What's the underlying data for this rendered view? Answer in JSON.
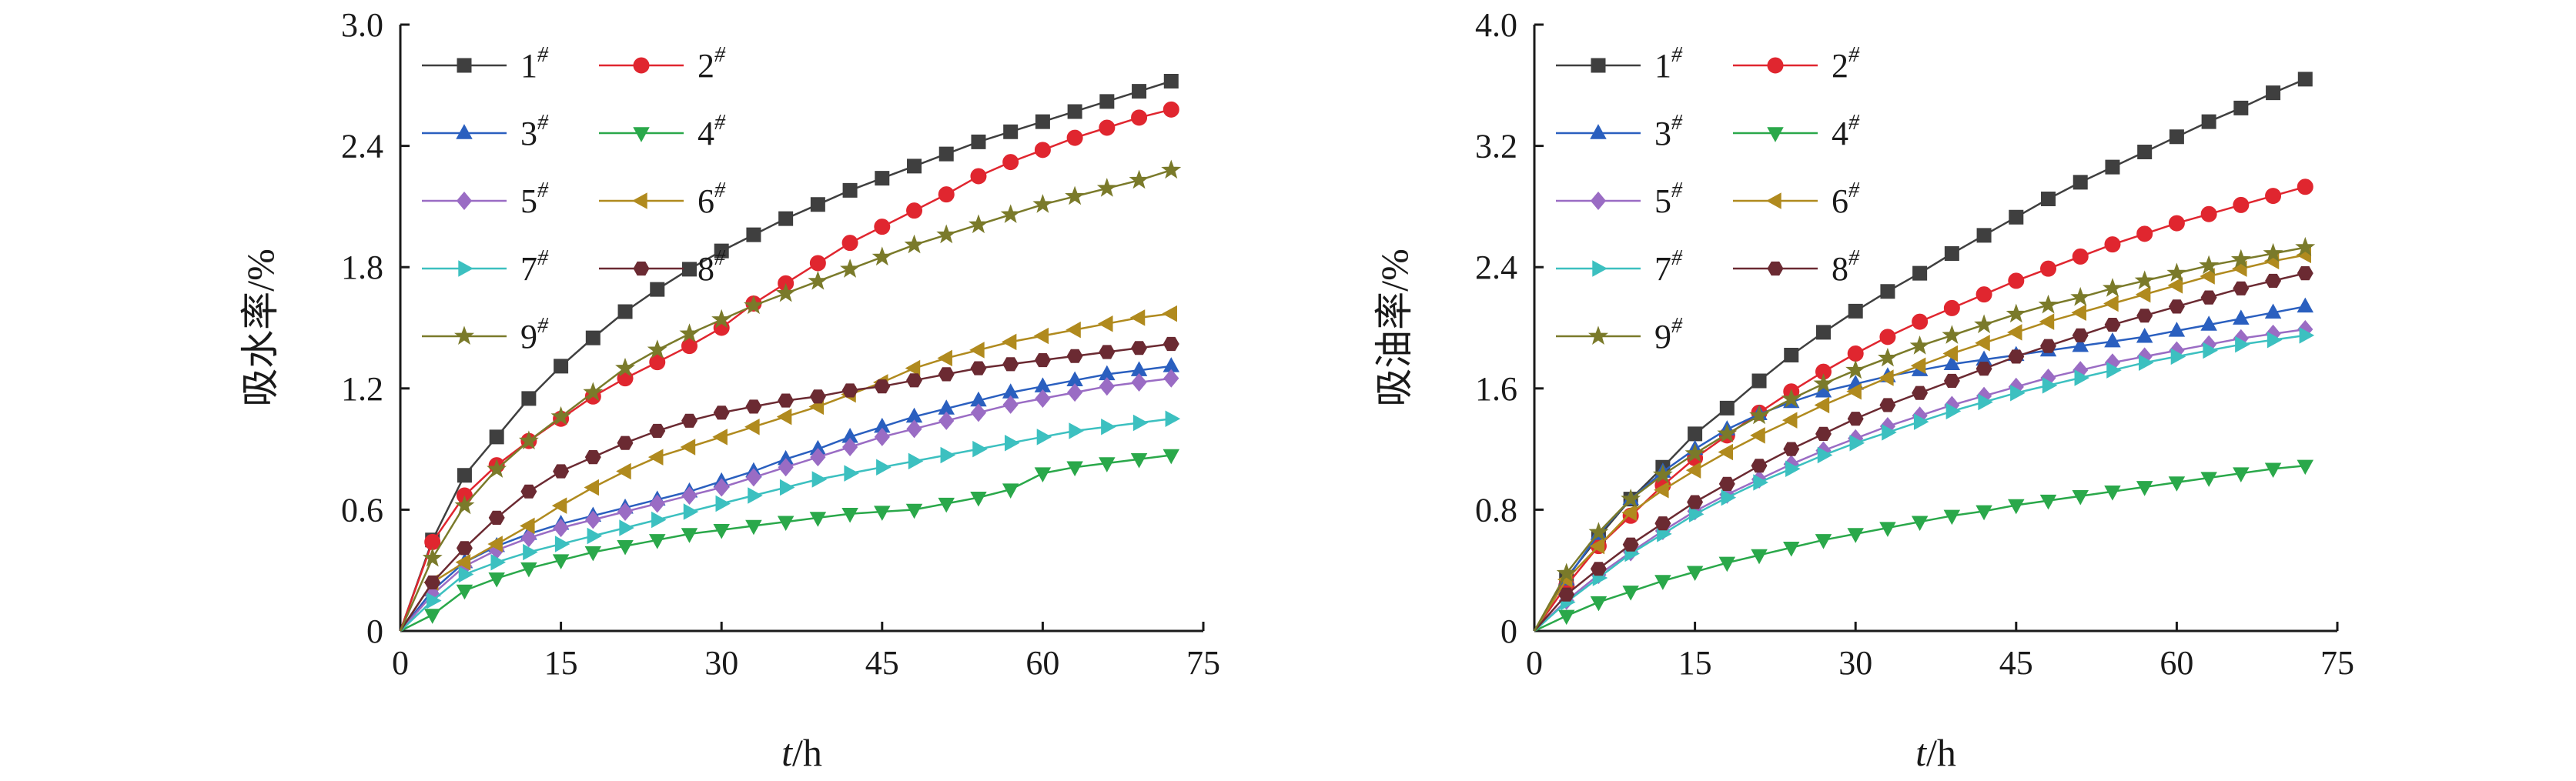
{
  "chart_data": [
    {
      "type": "line",
      "ylabel": "吸水率/%",
      "xlabel_italic": "t",
      "xlabel_rest": "/h",
      "xlim": [
        0,
        75
      ],
      "ylim": [
        0,
        3.0
      ],
      "xticks": [
        "0",
        "15",
        "30",
        "45",
        "60",
        "75"
      ],
      "yticks": [
        "0",
        "0.6",
        "1.2",
        "1.8",
        "2.4",
        "3.0"
      ],
      "grid": false,
      "legend": "top-left, two columns",
      "x": [
        0,
        3,
        6,
        9,
        12,
        15,
        18,
        21,
        24,
        27,
        30,
        33,
        36,
        39,
        42,
        45,
        48,
        51,
        54,
        57,
        60,
        63,
        66,
        69,
        72
      ],
      "series": [
        {
          "name": "1",
          "sup": "#",
          "marker": "square",
          "color": "#3f3f3f",
          "values": [
            0,
            0.45,
            0.77,
            0.96,
            1.15,
            1.31,
            1.45,
            1.58,
            1.69,
            1.79,
            1.88,
            1.96,
            2.04,
            2.11,
            2.18,
            2.24,
            2.3,
            2.36,
            2.42,
            2.47,
            2.52,
            2.57,
            2.62,
            2.67,
            2.72
          ]
        },
        {
          "name": "2",
          "sup": "#",
          "marker": "circle",
          "color": "#e0262f",
          "values": [
            0,
            0.44,
            0.67,
            0.82,
            0.94,
            1.05,
            1.16,
            1.25,
            1.33,
            1.41,
            1.5,
            1.62,
            1.72,
            1.82,
            1.92,
            2.0,
            2.08,
            2.16,
            2.25,
            2.32,
            2.38,
            2.44,
            2.49,
            2.54,
            2.58
          ]
        },
        {
          "name": "3",
          "sup": "#",
          "marker": "triangle-up",
          "color": "#2a5fbf",
          "values": [
            0,
            0.2,
            0.34,
            0.42,
            0.48,
            0.53,
            0.57,
            0.61,
            0.65,
            0.69,
            0.74,
            0.79,
            0.85,
            0.9,
            0.96,
            1.01,
            1.06,
            1.1,
            1.14,
            1.18,
            1.21,
            1.24,
            1.27,
            1.29,
            1.31
          ]
        },
        {
          "name": "4",
          "sup": "#",
          "marker": "triangle-down",
          "color": "#2aa84a",
          "values": [
            0,
            0.08,
            0.2,
            0.26,
            0.31,
            0.35,
            0.39,
            0.42,
            0.45,
            0.48,
            0.5,
            0.52,
            0.54,
            0.56,
            0.58,
            0.59,
            0.6,
            0.63,
            0.66,
            0.7,
            0.78,
            0.81,
            0.83,
            0.85,
            0.87
          ]
        },
        {
          "name": "5",
          "sup": "#",
          "marker": "diamond",
          "color": "#9a6cc4",
          "values": [
            0,
            0.18,
            0.32,
            0.4,
            0.46,
            0.51,
            0.55,
            0.59,
            0.63,
            0.67,
            0.71,
            0.76,
            0.81,
            0.86,
            0.91,
            0.96,
            1.0,
            1.04,
            1.08,
            1.12,
            1.15,
            1.18,
            1.21,
            1.23,
            1.25
          ]
        },
        {
          "name": "6",
          "sup": "#",
          "marker": "triangle-left",
          "color": "#b08a1e",
          "values": [
            0,
            0.24,
            0.34,
            0.43,
            0.52,
            0.62,
            0.71,
            0.79,
            0.86,
            0.91,
            0.96,
            1.01,
            1.06,
            1.11,
            1.17,
            1.23,
            1.3,
            1.35,
            1.39,
            1.43,
            1.46,
            1.49,
            1.52,
            1.55,
            1.57
          ]
        },
        {
          "name": "7",
          "sup": "#",
          "marker": "triangle-right",
          "color": "#3cc0c0",
          "values": [
            0,
            0.15,
            0.28,
            0.34,
            0.39,
            0.43,
            0.47,
            0.51,
            0.55,
            0.59,
            0.63,
            0.67,
            0.71,
            0.75,
            0.78,
            0.81,
            0.84,
            0.87,
            0.9,
            0.93,
            0.96,
            0.99,
            1.01,
            1.03,
            1.05
          ]
        },
        {
          "name": "8",
          "sup": "#",
          "marker": "hexagon",
          "color": "#6b2a32",
          "values": [
            0,
            0.24,
            0.41,
            0.56,
            0.69,
            0.79,
            0.86,
            0.93,
            0.99,
            1.04,
            1.08,
            1.11,
            1.14,
            1.16,
            1.19,
            1.21,
            1.24,
            1.27,
            1.3,
            1.32,
            1.34,
            1.36,
            1.38,
            1.4,
            1.42
          ]
        },
        {
          "name": "9",
          "sup": "#",
          "marker": "star",
          "color": "#7a7a2a",
          "values": [
            0,
            0.36,
            0.62,
            0.8,
            0.94,
            1.06,
            1.18,
            1.3,
            1.39,
            1.47,
            1.54,
            1.61,
            1.67,
            1.73,
            1.79,
            1.85,
            1.91,
            1.96,
            2.01,
            2.06,
            2.11,
            2.15,
            2.19,
            2.23,
            2.28
          ]
        }
      ]
    },
    {
      "type": "line",
      "ylabel": "吸油率/%",
      "xlabel_italic": "t",
      "xlabel_rest": "/h",
      "xlim": [
        0,
        75
      ],
      "ylim": [
        0,
        4.0
      ],
      "xticks": [
        "0",
        "15",
        "30",
        "45",
        "60",
        "75"
      ],
      "yticks": [
        "0",
        "0.8",
        "1.6",
        "2.4",
        "3.2",
        "4.0"
      ],
      "grid": false,
      "legend": "top-left, two columns",
      "x": [
        0,
        3,
        6,
        9,
        12,
        15,
        18,
        21,
        24,
        27,
        30,
        33,
        36,
        39,
        42,
        45,
        48,
        51,
        54,
        57,
        60,
        63,
        66,
        69,
        72
      ],
      "series": [
        {
          "name": "1",
          "sup": "#",
          "marker": "square",
          "color": "#3f3f3f",
          "values": [
            0,
            0.35,
            0.62,
            0.87,
            1.08,
            1.3,
            1.47,
            1.65,
            1.82,
            1.97,
            2.11,
            2.24,
            2.36,
            2.49,
            2.61,
            2.73,
            2.85,
            2.96,
            3.06,
            3.16,
            3.26,
            3.36,
            3.45,
            3.55,
            3.64
          ]
        },
        {
          "name": "2",
          "sup": "#",
          "marker": "circle",
          "color": "#e0262f",
          "values": [
            0,
            0.3,
            0.56,
            0.76,
            0.96,
            1.14,
            1.29,
            1.44,
            1.58,
            1.71,
            1.83,
            1.94,
            2.04,
            2.13,
            2.22,
            2.31,
            2.39,
            2.47,
            2.55,
            2.62,
            2.69,
            2.75,
            2.81,
            2.87,
            2.93
          ]
        },
        {
          "name": "3",
          "sup": "#",
          "marker": "triangle-up",
          "color": "#2a5fbf",
          "values": [
            0,
            0.34,
            0.64,
            0.87,
            1.05,
            1.2,
            1.33,
            1.43,
            1.51,
            1.58,
            1.63,
            1.68,
            1.72,
            1.76,
            1.79,
            1.82,
            1.85,
            1.88,
            1.91,
            1.94,
            1.98,
            2.02,
            2.06,
            2.1,
            2.14
          ]
        },
        {
          "name": "4",
          "sup": "#",
          "marker": "triangle-down",
          "color": "#2aa84a",
          "values": [
            0,
            0.1,
            0.19,
            0.26,
            0.33,
            0.39,
            0.45,
            0.5,
            0.55,
            0.6,
            0.64,
            0.68,
            0.72,
            0.76,
            0.79,
            0.83,
            0.86,
            0.89,
            0.92,
            0.95,
            0.98,
            1.01,
            1.04,
            1.07,
            1.09
          ]
        },
        {
          "name": "5",
          "sup": "#",
          "marker": "diamond",
          "color": "#9a6cc4",
          "values": [
            0,
            0.2,
            0.37,
            0.52,
            0.66,
            0.79,
            0.9,
            1.0,
            1.1,
            1.19,
            1.27,
            1.35,
            1.42,
            1.49,
            1.55,
            1.61,
            1.67,
            1.72,
            1.77,
            1.81,
            1.85,
            1.89,
            1.93,
            1.96,
            1.99
          ]
        },
        {
          "name": "6",
          "sup": "#",
          "marker": "triangle-left",
          "color": "#b08a1e",
          "values": [
            0,
            0.34,
            0.56,
            0.78,
            0.93,
            1.06,
            1.18,
            1.29,
            1.39,
            1.49,
            1.58,
            1.67,
            1.75,
            1.83,
            1.9,
            1.97,
            2.04,
            2.1,
            2.16,
            2.22,
            2.28,
            2.34,
            2.39,
            2.44,
            2.48
          ]
        },
        {
          "name": "7",
          "sup": "#",
          "marker": "triangle-right",
          "color": "#3cc0c0",
          "values": [
            0,
            0.19,
            0.35,
            0.51,
            0.64,
            0.77,
            0.88,
            0.98,
            1.07,
            1.16,
            1.24,
            1.31,
            1.38,
            1.45,
            1.51,
            1.57,
            1.62,
            1.67,
            1.72,
            1.77,
            1.81,
            1.85,
            1.89,
            1.92,
            1.95
          ]
        },
        {
          "name": "8",
          "sup": "#",
          "marker": "hexagon",
          "color": "#6b2a32",
          "values": [
            0,
            0.24,
            0.41,
            0.57,
            0.71,
            0.85,
            0.97,
            1.09,
            1.2,
            1.3,
            1.4,
            1.49,
            1.57,
            1.65,
            1.73,
            1.81,
            1.88,
            1.95,
            2.02,
            2.08,
            2.14,
            2.2,
            2.26,
            2.31,
            2.36
          ]
        },
        {
          "name": "9",
          "sup": "#",
          "marker": "star",
          "color": "#7a7a2a",
          "values": [
            0,
            0.38,
            0.65,
            0.87,
            1.03,
            1.17,
            1.3,
            1.42,
            1.53,
            1.63,
            1.72,
            1.8,
            1.88,
            1.95,
            2.02,
            2.09,
            2.15,
            2.2,
            2.26,
            2.31,
            2.36,
            2.41,
            2.45,
            2.49,
            2.53
          ]
        }
      ]
    }
  ]
}
